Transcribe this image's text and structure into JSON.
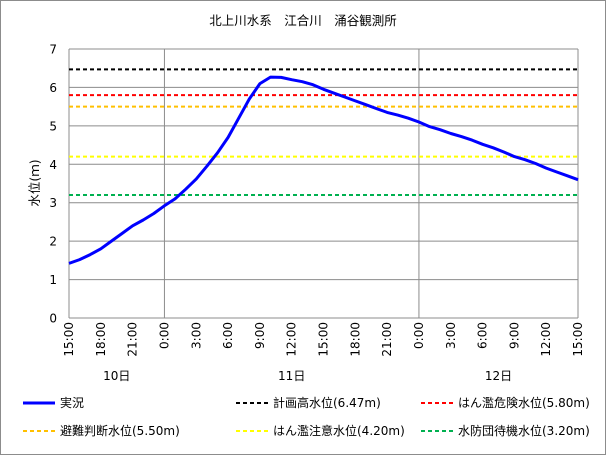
{
  "chart_data": {
    "type": "line",
    "title": "北上川水系　江合川　涌谷観測所",
    "xlabel": "",
    "ylabel": "水位(ｍ)",
    "ylim": [
      0,
      7
    ],
    "yticks": [
      "0",
      "1",
      "2",
      "3",
      "4",
      "5",
      "6",
      "7"
    ],
    "xlim": [
      15,
      63
    ],
    "xtick_labels": [
      "15:00",
      "18:00",
      "21:00",
      "0:00",
      "3:00",
      "6:00",
      "9:00",
      "12:00",
      "15:00",
      "18:00",
      "21:00",
      "0:00",
      "3:00",
      "6:00",
      "9:00",
      "12:00",
      "15:00"
    ],
    "xtick_hours": [
      15,
      18,
      21,
      24,
      27,
      30,
      33,
      36,
      39,
      42,
      45,
      48,
      51,
      54,
      57,
      60,
      63
    ],
    "day_labels": [
      {
        "text": "10日",
        "hour": 19.5
      },
      {
        "text": "11日",
        "hour": 36
      },
      {
        "text": "12日",
        "hour": 55.5
      }
    ],
    "day_boundaries": [
      24,
      48
    ],
    "grid": true,
    "legend_position": "bottom",
    "series": [
      {
        "name": "実況",
        "color": "#0000ff",
        "style": "solid",
        "x": [
          15,
          16,
          17,
          18,
          19,
          20,
          21,
          22,
          23,
          24,
          25,
          26,
          27,
          28,
          29,
          30,
          31,
          32,
          33,
          34,
          35,
          36,
          37,
          38,
          39,
          40,
          41,
          42,
          43,
          44,
          45,
          46,
          47,
          48,
          49,
          50,
          51,
          52,
          53,
          54,
          55,
          56,
          57,
          58,
          59,
          60,
          61,
          62,
          63
        ],
        "y": [
          1.42,
          1.52,
          1.65,
          1.8,
          2.0,
          2.2,
          2.4,
          2.55,
          2.72,
          2.92,
          3.1,
          3.35,
          3.62,
          3.95,
          4.3,
          4.7,
          5.2,
          5.7,
          6.1,
          6.27,
          6.26,
          6.2,
          6.15,
          6.07,
          5.95,
          5.85,
          5.75,
          5.65,
          5.55,
          5.45,
          5.35,
          5.28,
          5.2,
          5.1,
          4.98,
          4.9,
          4.8,
          4.72,
          4.63,
          4.52,
          4.43,
          4.32,
          4.2,
          4.12,
          4.02,
          3.9,
          3.8,
          3.7,
          3.6
        ]
      },
      {
        "name": "計画高水位(6.47m)",
        "color": "#000000",
        "style": "dashed",
        "value": 6.47
      },
      {
        "name": "はん濫危険水位(5.80m)",
        "color": "#ff0000",
        "style": "dashed",
        "value": 5.8
      },
      {
        "name": "避難判断水位(5.50m)",
        "color": "#ffc000",
        "style": "dashed",
        "value": 5.5
      },
      {
        "name": "はん濫注意水位(4.20m)",
        "color": "#ffff00",
        "style": "dashed",
        "value": 4.2
      },
      {
        "name": "水防団待機水位(3.20m)",
        "color": "#00b050",
        "style": "dashed",
        "value": 3.2
      }
    ]
  }
}
